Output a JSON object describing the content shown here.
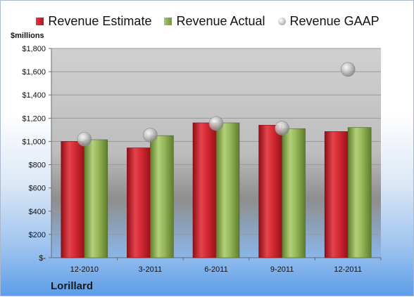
{
  "company": "Lorillard",
  "chart_data": {
    "type": "bar",
    "unit_label": "$millions",
    "categories": [
      "12-2010",
      "3-2011",
      "6-2011",
      "9-2011",
      "12-2011"
    ],
    "series": [
      {
        "name": "Revenue Estimate",
        "type": "bar",
        "color": "#c8202b",
        "values": [
          1000,
          945,
          1160,
          1140,
          1085
        ]
      },
      {
        "name": "Revenue Actual",
        "type": "bar",
        "color": "#8aac4f",
        "values": [
          1015,
          1050,
          1160,
          1110,
          1120
        ]
      },
      {
        "name": "Revenue GAAP",
        "type": "scatter",
        "color": "#a9a9a9",
        "values": [
          1020,
          1055,
          1155,
          1115,
          1620
        ]
      }
    ],
    "ylim": [
      0,
      1800
    ],
    "yticks": [
      0,
      200,
      400,
      600,
      800,
      1000,
      1200,
      1400,
      1600,
      1800
    ],
    "ytick_labels": [
      "$-",
      "$200",
      "$400",
      "$600",
      "$800",
      "$1,000",
      "$1,200",
      "$1,400",
      "$1,600",
      "$1,800"
    ],
    "legend_position": "top",
    "grid": true
  }
}
